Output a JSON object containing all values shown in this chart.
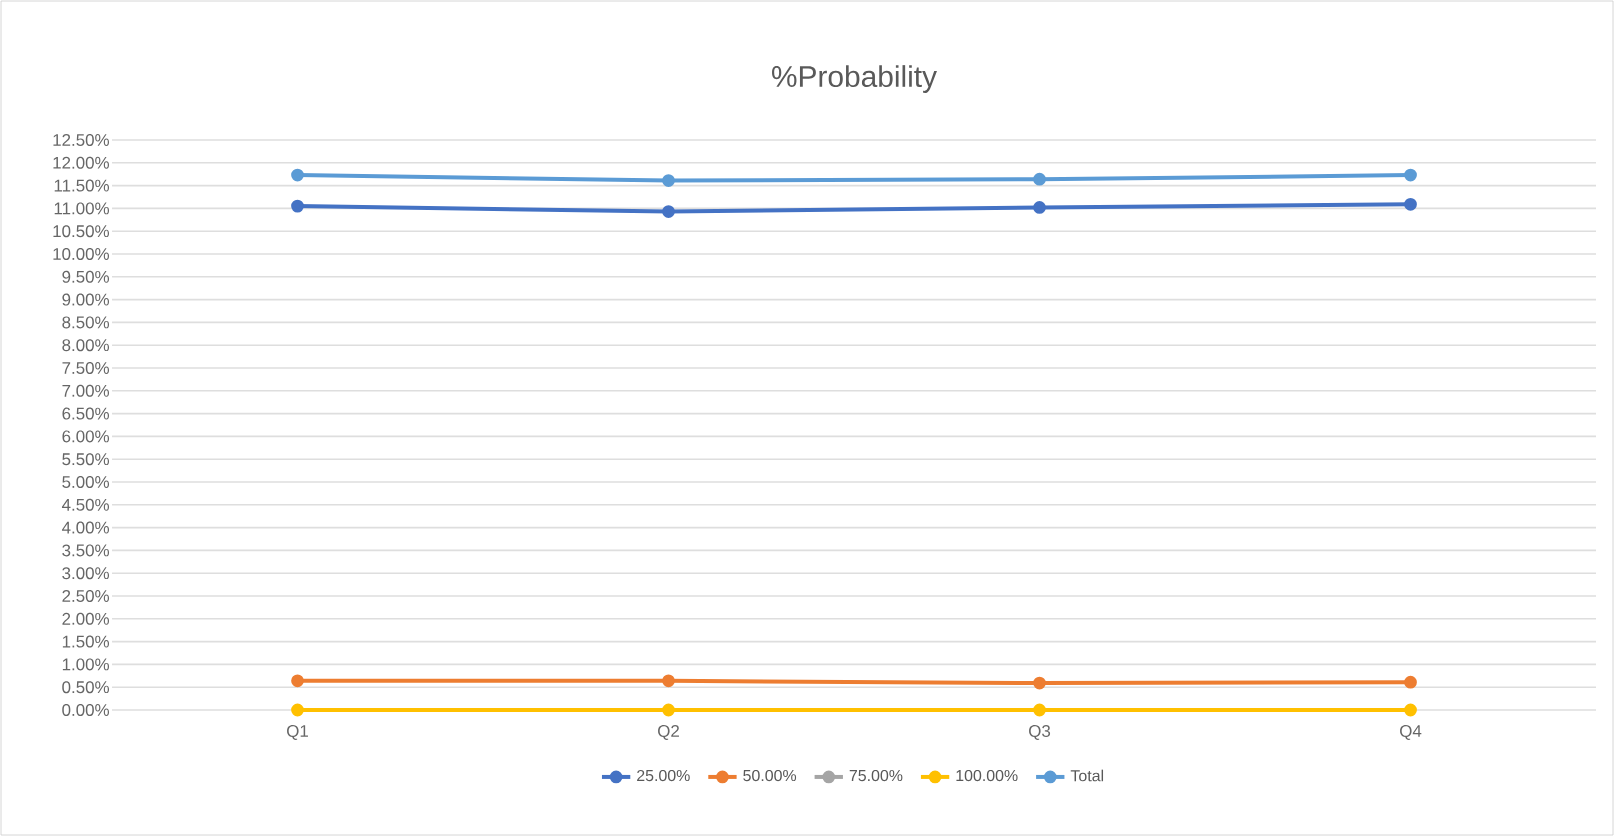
{
  "chart_data": {
    "type": "line",
    "title": "%Probability",
    "categories": [
      "Q1",
      "Q2",
      "Q3",
      "Q4"
    ],
    "series": [
      {
        "name": "25.00%",
        "color": "#4472c4",
        "values": [
          11.05,
          10.93,
          11.02,
          11.09
        ]
      },
      {
        "name": "50.00%",
        "color": "#ed7d31",
        "values": [
          0.64,
          0.64,
          0.59,
          0.61
        ]
      },
      {
        "name": "75.00%",
        "color": "#a5a5a5",
        "values": [
          null,
          null,
          null,
          null
        ]
      },
      {
        "name": "100.00%",
        "color": "#ffc000",
        "values": [
          0,
          0,
          0,
          0
        ]
      },
      {
        "name": "Total",
        "color": "#5b9bd5",
        "values": [
          11.73,
          11.61,
          11.64,
          11.73
        ]
      }
    ],
    "ylim": [
      0,
      12.5
    ],
    "yticks": [
      {
        "value": 0,
        "label": "0.00%"
      },
      {
        "value": 0.5,
        "label": "0.50%"
      },
      {
        "value": 1,
        "label": "1.00%"
      },
      {
        "value": 1.5,
        "label": "1.50%"
      },
      {
        "value": 2,
        "label": "2.00%"
      },
      {
        "value": 2.5,
        "label": "2.50%"
      },
      {
        "value": 3,
        "label": "3.00%"
      },
      {
        "value": 3.5,
        "label": "3.50%"
      },
      {
        "value": 4,
        "label": "4.00%"
      },
      {
        "value": 4.5,
        "label": "4.50%"
      },
      {
        "value": 5,
        "label": "5.00%"
      },
      {
        "value": 5.5,
        "label": "5.50%"
      },
      {
        "value": 6,
        "label": "6.00%"
      },
      {
        "value": 6.5,
        "label": "6.50%"
      },
      {
        "value": 7,
        "label": "7.00%"
      },
      {
        "value": 7.5,
        "label": "7.50%"
      },
      {
        "value": 8,
        "label": "8.00%"
      },
      {
        "value": 8.5,
        "label": "8.50%"
      },
      {
        "value": 9,
        "label": "9.00%"
      },
      {
        "value": 9.5,
        "label": "9.50%"
      },
      {
        "value": 10,
        "label": "10.00%"
      },
      {
        "value": 10.5,
        "label": "10.50%"
      },
      {
        "value": 11,
        "label": "11.00%"
      },
      {
        "value": 11.5,
        "label": "11.50%"
      },
      {
        "value": 12,
        "label": "12.00%"
      },
      {
        "value": 12.5,
        "label": "12.50%"
      }
    ],
    "grid": "y",
    "legend": "bottom",
    "marker": "circle",
    "line_style": "solid"
  }
}
